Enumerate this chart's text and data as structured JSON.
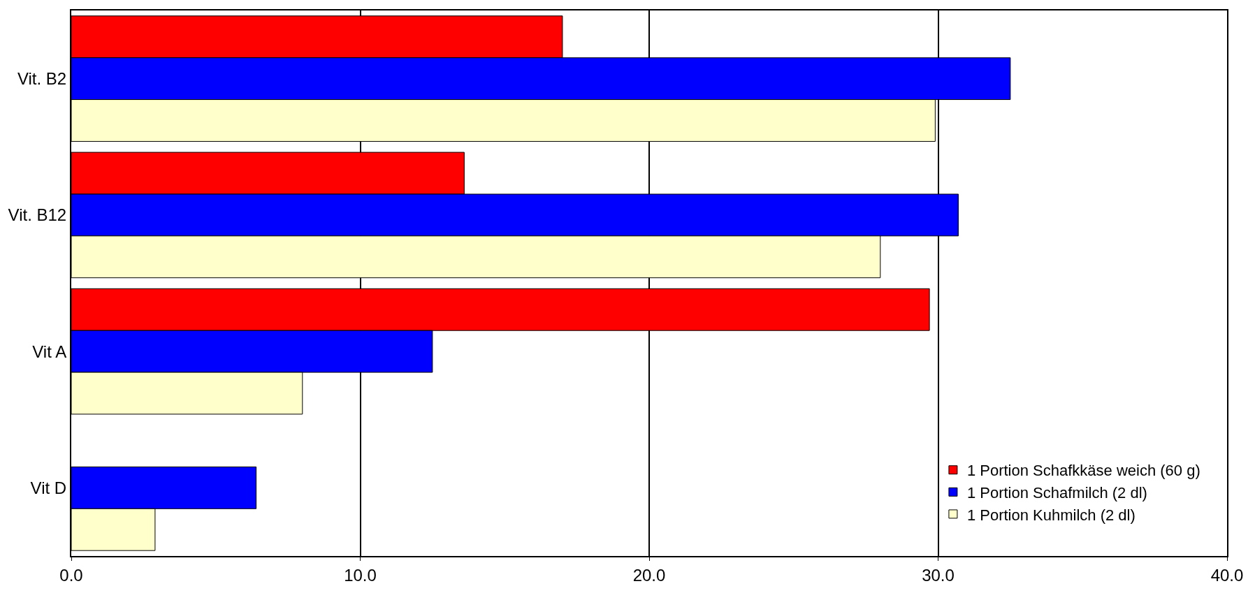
{
  "chart_data": {
    "type": "bar",
    "orientation": "horizontal",
    "categories": [
      "Vit. B2",
      "Vit. B12",
      "Vit A",
      "Vit D"
    ],
    "series": [
      {
        "name": "1 Portion Schafkkäse weich (60 g)",
        "color": "#ff0000",
        "values": [
          17.0,
          13.6,
          29.7,
          null
        ]
      },
      {
        "name": "1 Portion Schafmilch (2 dl)",
        "color": "#0000ff",
        "values": [
          32.5,
          30.7,
          12.5,
          6.4
        ]
      },
      {
        "name": "1 Portion Kuhmilch (2 dl)",
        "color": "#ffffcc",
        "values": [
          29.9,
          28.0,
          8.0,
          2.9
        ]
      }
    ],
    "xlim": [
      0,
      40
    ],
    "xticks": [
      {
        "value": 0,
        "label": "0.0"
      },
      {
        "value": 10,
        "label": "10.0"
      },
      {
        "value": 20,
        "label": "20.0"
      },
      {
        "value": 30,
        "label": "30.0"
      },
      {
        "value": 40,
        "label": "40.0"
      }
    ],
    "grid": "x",
    "legend": "bottom right"
  }
}
